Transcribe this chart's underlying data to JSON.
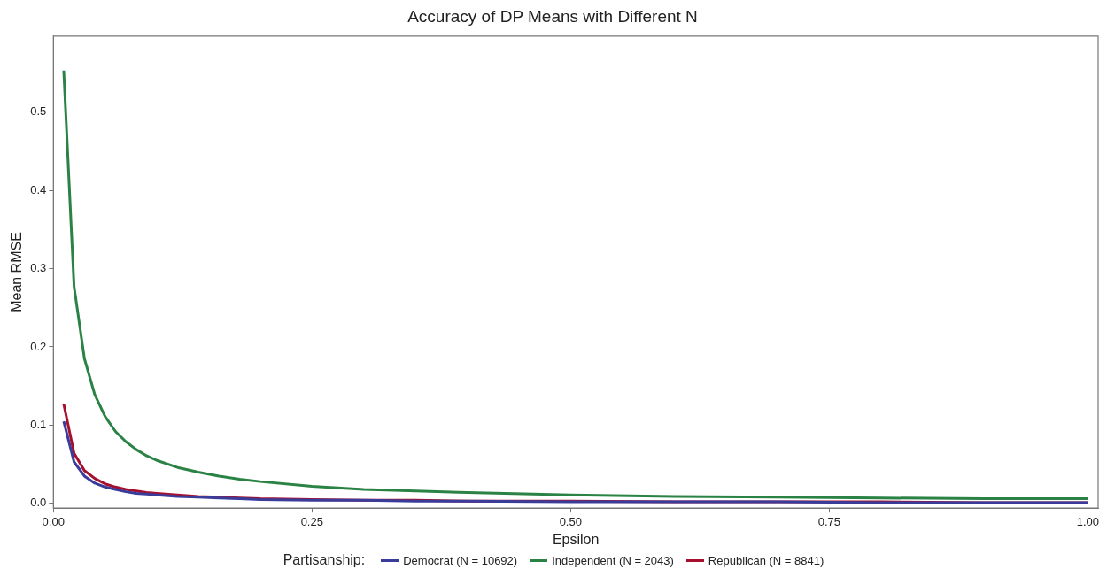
{
  "chart_data": {
    "type": "line",
    "title": "Accuracy of DP Means with Different N",
    "xlabel": "Epsilon",
    "ylabel": "Mean RMSE",
    "legend_title": "Partisanship:",
    "legend": "bottom",
    "marker": "none",
    "line_style": "solid",
    "x": [
      0.01,
      0.02,
      0.03,
      0.04,
      0.05,
      0.06,
      0.07,
      0.08,
      0.09,
      0.1,
      0.12,
      0.14,
      0.16,
      0.18,
      0.2,
      0.25,
      0.3,
      0.35,
      0.4,
      0.5,
      0.6,
      0.7,
      0.8,
      0.9,
      1.0
    ],
    "xlim": [
      0,
      1.01
    ],
    "xticks": [
      {
        "value": 0,
        "label": "0.00"
      },
      {
        "value": 0.25,
        "label": "0.25"
      },
      {
        "value": 0.5,
        "label": "0.50"
      },
      {
        "value": 0.75,
        "label": "0.75"
      },
      {
        "value": 1,
        "label": "1.00"
      }
    ],
    "ylim": [
      -0.006,
      0.597
    ],
    "yticks": [
      {
        "value": 0,
        "label": "0.0"
      },
      0.1,
      0.2,
      0.3,
      0.4,
      0.5
    ],
    "series": [
      {
        "name": "Democrat (N = 10692)",
        "color": "#3a3c9a",
        "values": [
          0.105,
          0.053,
          0.035,
          0.026,
          0.021,
          0.018,
          0.015,
          0.013,
          0.012,
          0.011,
          0.009,
          0.008,
          0.007,
          0.006,
          0.005,
          0.004,
          0.004,
          0.003,
          0.003,
          0.002,
          0.002,
          0.002,
          0.001,
          0.001,
          0.001
        ]
      },
      {
        "name": "Independent (N = 2043)",
        "color": "#2a8344",
        "values": [
          0.553,
          0.277,
          0.185,
          0.139,
          0.111,
          0.092,
          0.079,
          0.069,
          0.061,
          0.055,
          0.046,
          0.04,
          0.035,
          0.031,
          0.028,
          0.022,
          0.018,
          0.016,
          0.014,
          0.011,
          0.009,
          0.008,
          0.007,
          0.006,
          0.006
        ]
      },
      {
        "name": "Republican (N = 8841)",
        "color": "#a6102e",
        "values": [
          0.127,
          0.064,
          0.042,
          0.032,
          0.025,
          0.021,
          0.018,
          0.016,
          0.014,
          0.013,
          0.011,
          0.009,
          0.008,
          0.007,
          0.006,
          0.005,
          0.004,
          0.004,
          0.003,
          0.003,
          0.002,
          0.002,
          0.002,
          0.001,
          0.001
        ]
      }
    ]
  }
}
